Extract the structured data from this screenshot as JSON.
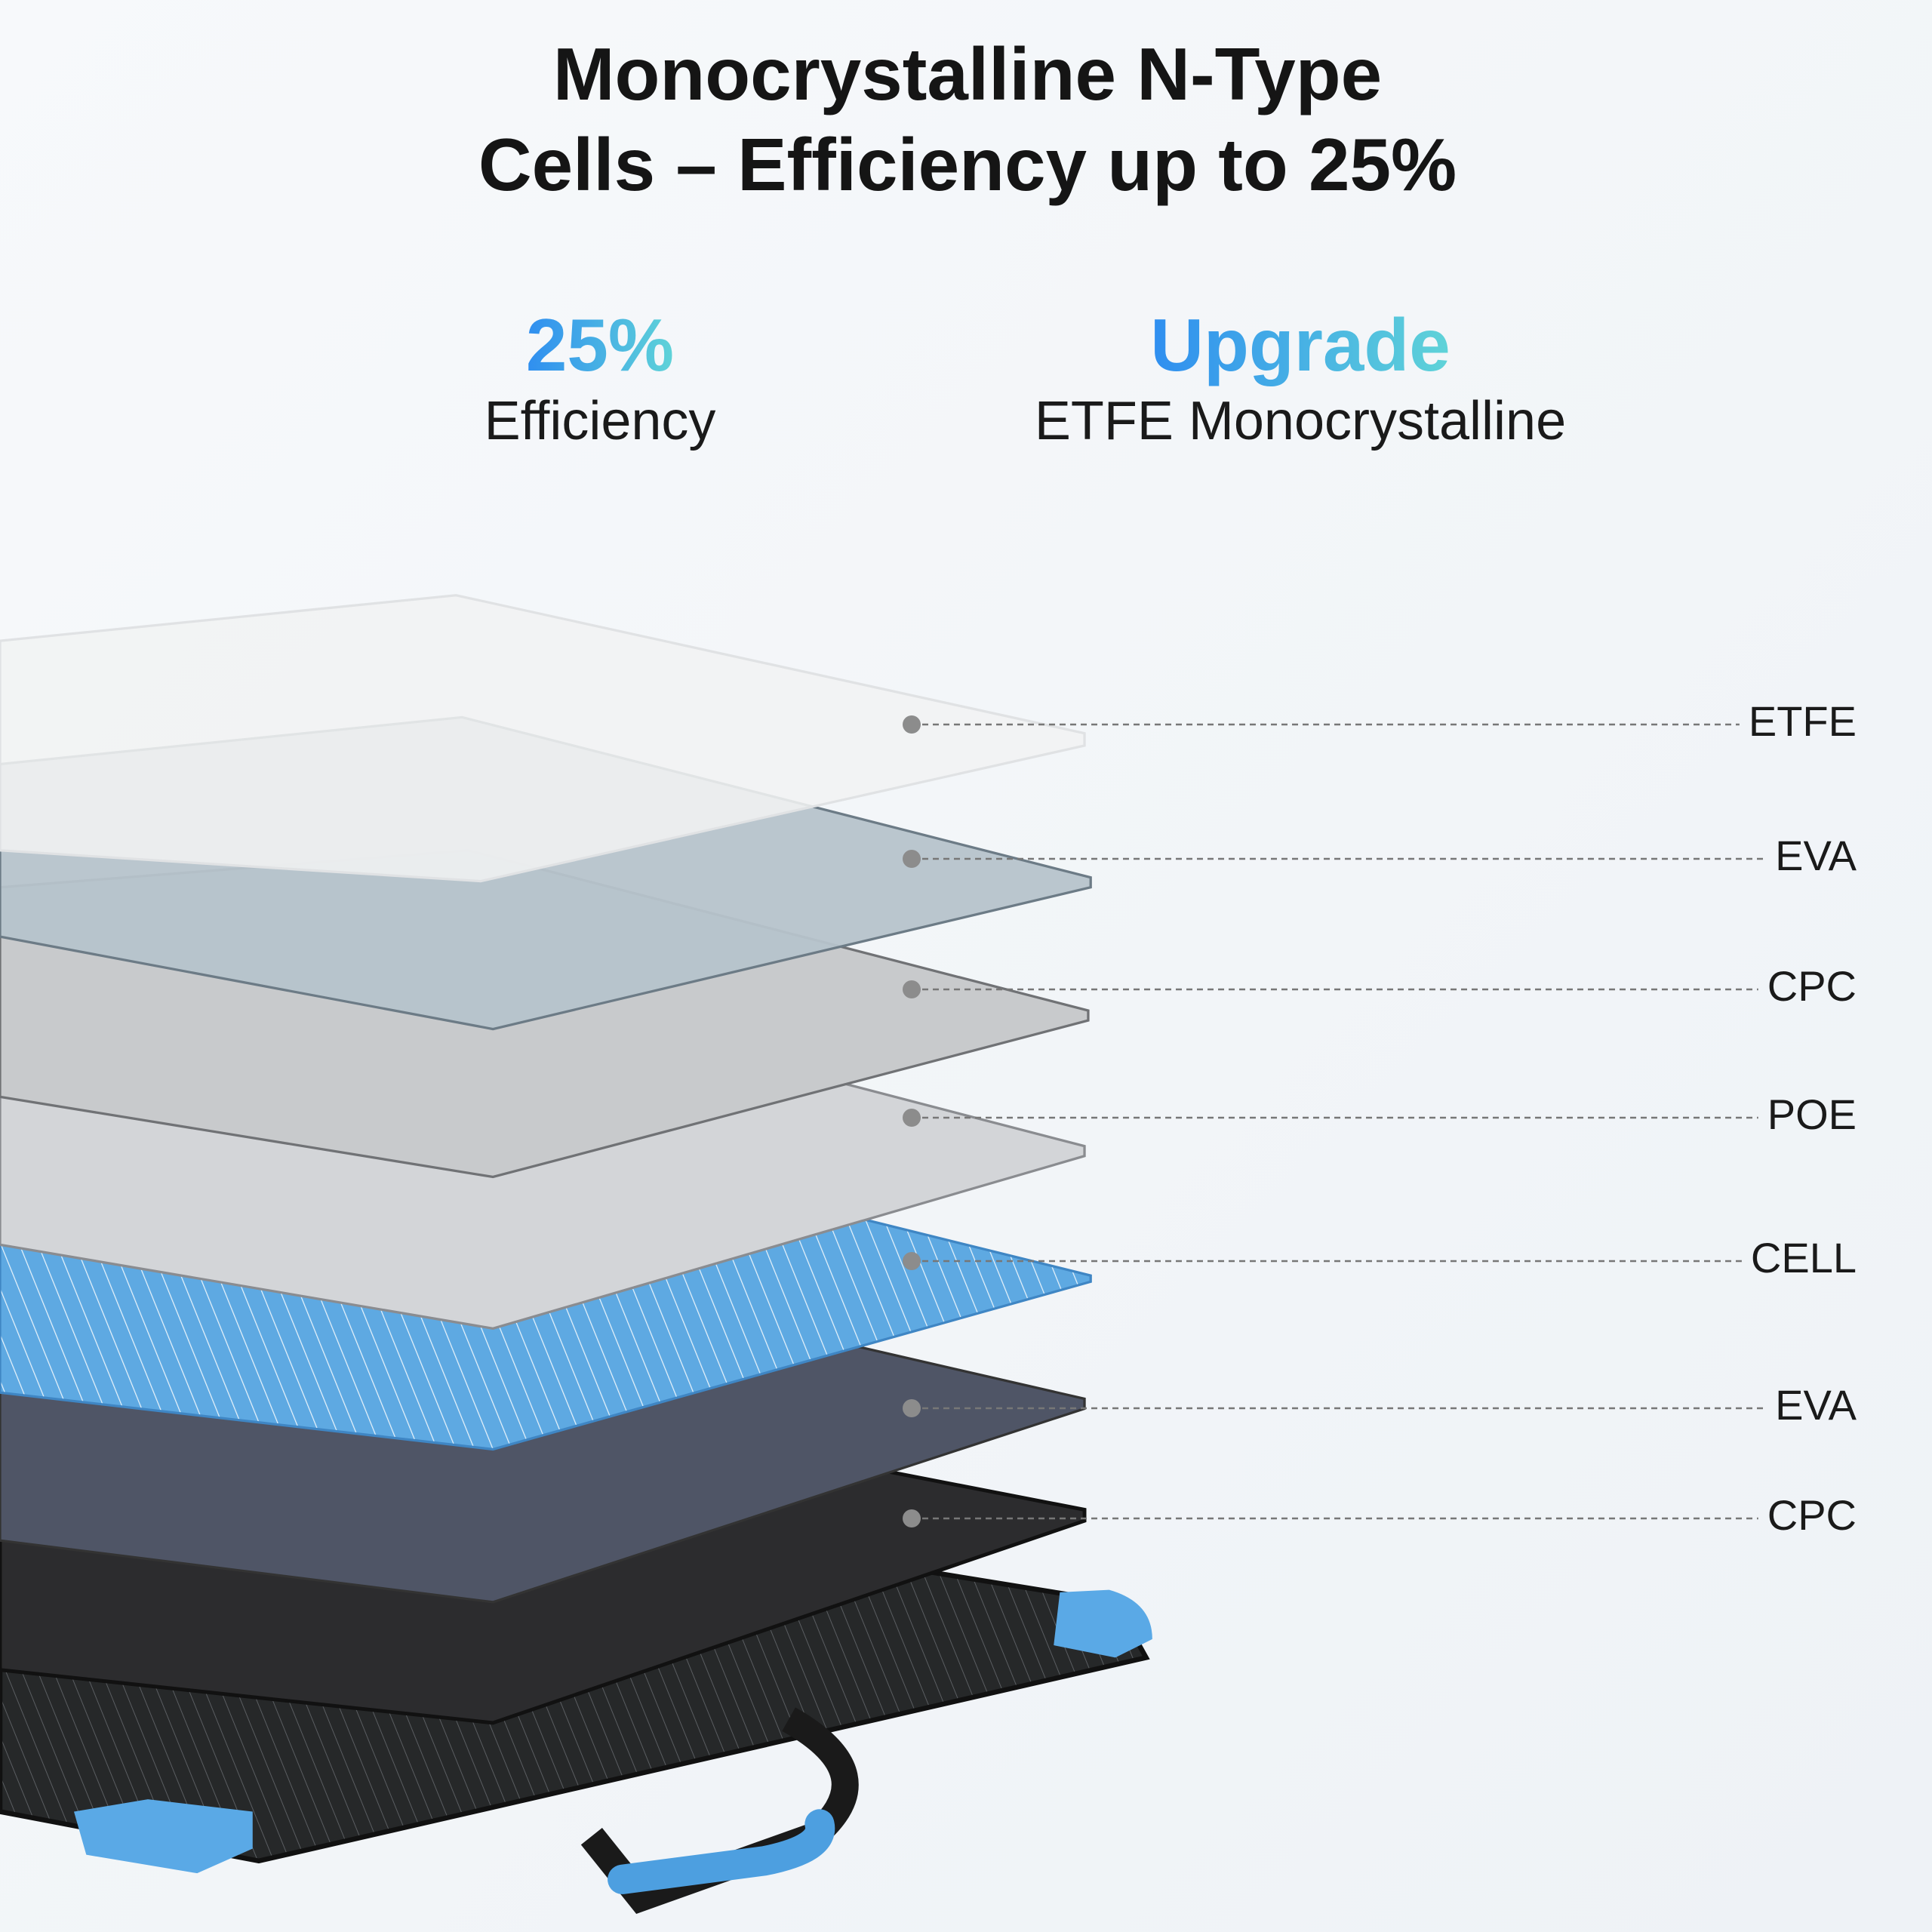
{
  "header": {
    "title_line1": "Monocrystalline N-Type",
    "title_line2": "Cells – Efficiency up to 25%"
  },
  "highlights": [
    {
      "headline": "25%",
      "caption": "Efficiency"
    },
    {
      "headline": "Upgrade",
      "caption": "ETFE Monocrystalline"
    }
  ],
  "layers": [
    "ETFE",
    "EVA",
    "CPC",
    "POE",
    "CELL",
    "EVA",
    "CPC"
  ]
}
